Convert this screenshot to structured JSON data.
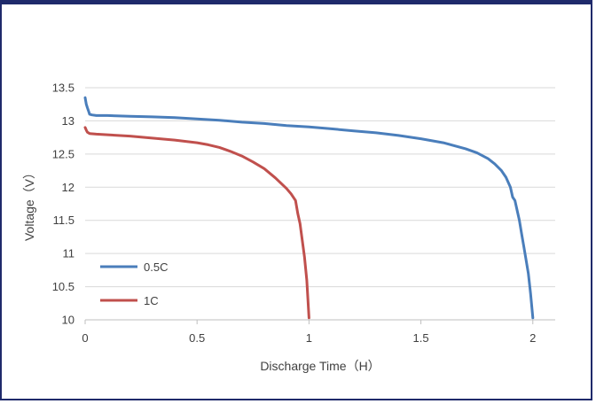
{
  "chart_data": {
    "type": "line",
    "xlabel": "Discharge Time（H）",
    "ylabel": "Voltage（V）",
    "xlim": [
      0,
      2.1
    ],
    "ylim": [
      10,
      13.5
    ],
    "xticks": [
      0,
      0.5,
      1,
      1.5,
      2
    ],
    "xtick_labels": [
      "0",
      "0.5",
      "1",
      "1.5",
      "2"
    ],
    "yticks": [
      10,
      10.5,
      11,
      11.5,
      12,
      12.5,
      13,
      13.5
    ],
    "ytick_labels": [
      "10",
      "10.5",
      "11",
      "11.5",
      "12",
      "12.5",
      "13",
      "13.5"
    ],
    "grid": true,
    "legend_position": "bottom-left",
    "series": [
      {
        "name": "0.5C",
        "color": "#4a7ebb",
        "x": [
          0,
          0.005,
          0.01,
          0.015,
          0.02,
          0.03,
          0.05,
          0.1,
          0.2,
          0.3,
          0.4,
          0.5,
          0.6,
          0.7,
          0.8,
          0.9,
          1.0,
          1.1,
          1.2,
          1.3,
          1.4,
          1.5,
          1.6,
          1.7,
          1.75,
          1.8,
          1.83,
          1.86,
          1.88,
          1.9,
          1.91,
          1.92,
          1.93,
          1.94,
          1.95,
          1.96,
          1.97,
          1.98,
          1.99,
          2.0
        ],
        "y": [
          13.35,
          13.25,
          13.2,
          13.15,
          13.1,
          13.09,
          13.08,
          13.08,
          13.07,
          13.06,
          13.05,
          13.03,
          13.01,
          12.98,
          12.96,
          12.93,
          12.91,
          12.88,
          12.85,
          12.82,
          12.78,
          12.73,
          12.67,
          12.58,
          12.52,
          12.43,
          12.35,
          12.25,
          12.15,
          12.0,
          11.85,
          11.8,
          11.65,
          11.5,
          11.3,
          11.1,
          10.9,
          10.7,
          10.4,
          10.03
        ]
      },
      {
        "name": "1C",
        "color": "#c0504d",
        "x": [
          0,
          0.005,
          0.01,
          0.02,
          0.05,
          0.1,
          0.2,
          0.3,
          0.4,
          0.5,
          0.55,
          0.6,
          0.65,
          0.7,
          0.75,
          0.8,
          0.85,
          0.9,
          0.92,
          0.94,
          0.95,
          0.96,
          0.97,
          0.98,
          0.99,
          1.0
        ],
        "y": [
          12.9,
          12.86,
          12.83,
          12.81,
          12.8,
          12.79,
          12.77,
          12.74,
          12.71,
          12.67,
          12.64,
          12.6,
          12.54,
          12.47,
          12.38,
          12.28,
          12.14,
          11.98,
          11.9,
          11.8,
          11.6,
          11.45,
          11.2,
          10.95,
          10.6,
          10.03
        ]
      }
    ]
  }
}
